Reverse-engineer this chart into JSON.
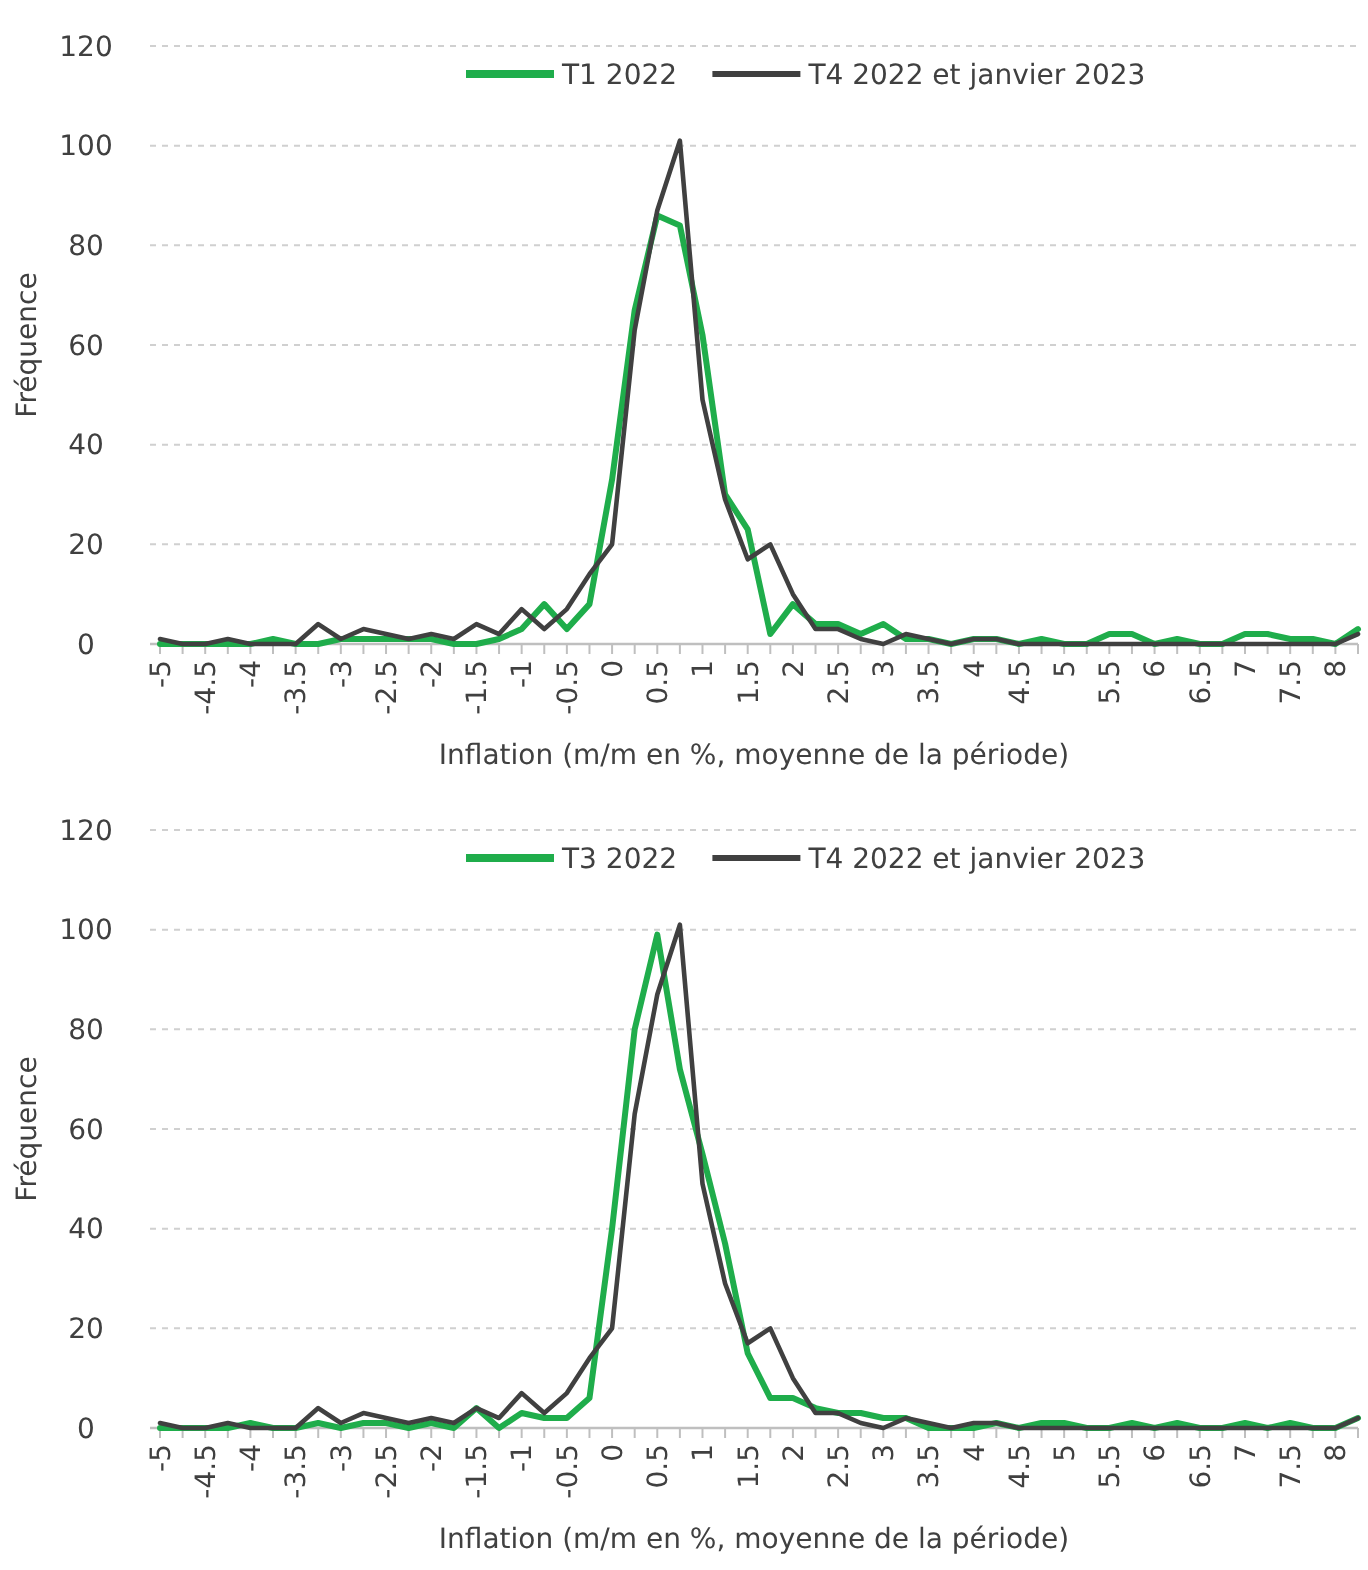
{
  "chart_data": [
    {
      "type": "line",
      "xlabel": "Inflation (m/m en %, moyenne de la période)",
      "ylabel": "Fréquence",
      "categories": [
        "-5",
        null,
        "-4.5",
        null,
        "-4",
        null,
        "-3.5",
        null,
        "-3",
        null,
        "-2.5",
        null,
        "-2",
        null,
        "-1.5",
        null,
        "-1",
        null,
        "-0.5",
        null,
        "0",
        null,
        "0.5",
        null,
        "1",
        null,
        "1.5",
        null,
        "2",
        null,
        "2.5",
        null,
        "3",
        null,
        "3.5",
        null,
        "4",
        null,
        "4.5",
        null,
        "5",
        null,
        "5.5",
        null,
        "6",
        null,
        "6.5",
        null,
        "7",
        null,
        "7.5",
        null,
        "8",
        null
      ],
      "series": [
        {
          "name": "T1 2022",
          "color": "#1fad4b",
          "values": [
            0,
            0,
            0,
            0,
            0,
            1,
            0,
            0,
            1,
            1,
            1,
            1,
            1,
            0,
            0,
            1,
            3,
            8,
            3,
            8,
            33,
            67,
            86,
            84,
            62,
            30,
            23,
            2,
            8,
            4,
            4,
            2,
            4,
            1,
            1,
            0,
            1,
            1,
            0,
            1,
            0,
            0,
            2,
            2,
            0,
            1,
            0,
            0,
            2,
            2,
            1,
            1,
            0,
            3
          ]
        },
        {
          "name": "T4 2022 et janvier 2023",
          "color": "#404040",
          "values": [
            1,
            0,
            0,
            1,
            0,
            0,
            0,
            4,
            1,
            3,
            2,
            1,
            2,
            1,
            4,
            2,
            7,
            3,
            7,
            14,
            20,
            63,
            87,
            101,
            49,
            29,
            17,
            20,
            10,
            3,
            3,
            1,
            0,
            2,
            1,
            0,
            1,
            1,
            0,
            0,
            0,
            0,
            0,
            0,
            0,
            0,
            0,
            0,
            0,
            0,
            0,
            0,
            0,
            2
          ]
        }
      ],
      "ylim": [
        0,
        120
      ],
      "yticks": [
        0,
        20,
        40,
        60,
        80,
        100,
        120
      ],
      "grid": "y",
      "legend": "top",
      "line_style": "solid",
      "marker": "none"
    },
    {
      "type": "line",
      "xlabel": "Inflation (m/m en %, moyenne de la période)",
      "ylabel": "Fréquence",
      "categories": [
        "-5",
        null,
        "-4.5",
        null,
        "-4",
        null,
        "-3.5",
        null,
        "-3",
        null,
        "-2.5",
        null,
        "-2",
        null,
        "-1.5",
        null,
        "-1",
        null,
        "-0.5",
        null,
        "0",
        null,
        "0.5",
        null,
        "1",
        null,
        "1.5",
        null,
        "2",
        null,
        "2.5",
        null,
        "3",
        null,
        "3.5",
        null,
        "4",
        null,
        "4.5",
        null,
        "5",
        null,
        "5.5",
        null,
        "6",
        null,
        "6.5",
        null,
        "7",
        null,
        "7.5",
        null,
        "8",
        null
      ],
      "series": [
        {
          "name": "T3 2022",
          "color": "#1fad4b",
          "values": [
            0,
            0,
            0,
            0,
            1,
            0,
            0,
            1,
            0,
            1,
            1,
            0,
            1,
            0,
            4,
            0,
            3,
            2,
            2,
            6,
            40,
            80,
            99,
            72,
            55,
            37,
            15,
            6,
            6,
            4,
            3,
            3,
            2,
            2,
            0,
            0,
            0,
            1,
            0,
            1,
            1,
            0,
            0,
            1,
            0,
            1,
            0,
            0,
            1,
            0,
            1,
            0,
            0,
            2
          ]
        },
        {
          "name": "T4 2022 et janvier 2023",
          "color": "#404040",
          "values": [
            1,
            0,
            0,
            1,
            0,
            0,
            0,
            4,
            1,
            3,
            2,
            1,
            2,
            1,
            4,
            2,
            7,
            3,
            7,
            14,
            20,
            63,
            87,
            101,
            49,
            29,
            17,
            20,
            10,
            3,
            3,
            1,
            0,
            2,
            1,
            0,
            1,
            1,
            0,
            0,
            0,
            0,
            0,
            0,
            0,
            0,
            0,
            0,
            0,
            0,
            0,
            0,
            0,
            2
          ]
        }
      ],
      "ylim": [
        0,
        120
      ],
      "yticks": [
        0,
        20,
        40,
        60,
        80,
        100,
        120
      ],
      "grid": "y",
      "legend": "top",
      "line_style": "solid",
      "marker": "none"
    }
  ]
}
